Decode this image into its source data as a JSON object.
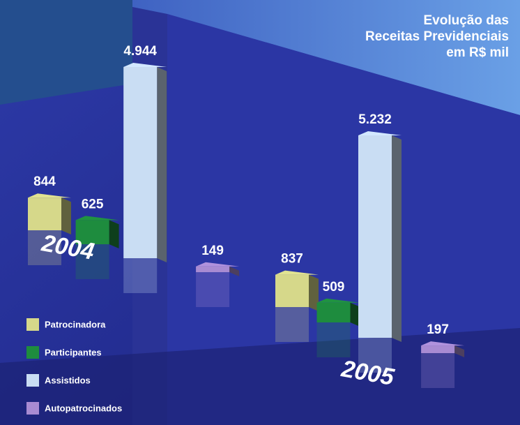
{
  "chart_data": {
    "type": "bar3d",
    "title": "Evolução das\nReceitas Previdenciais\nem R$ mil",
    "categories": [
      "2004",
      "2005"
    ],
    "series": [
      {
        "name": "Patrocinadora",
        "color": "#d6d88a",
        "values": [
          844,
          837
        ],
        "value_labels": [
          "844",
          "837"
        ]
      },
      {
        "name": "Participantes",
        "color": "#1e8c3e",
        "values": [
          625,
          509
        ],
        "value_labels": [
          "625",
          "509"
        ]
      },
      {
        "name": "Assistidos",
        "color": "#c9ddf3",
        "values": [
          4944,
          5232
        ],
        "value_labels": [
          "4.944",
          "5.232"
        ]
      },
      {
        "name": "Autopatrocinados",
        "color": "#a88bd2",
        "values": [
          149,
          197
        ],
        "value_labels": [
          "149",
          "197"
        ]
      }
    ],
    "legend": "bottom-left"
  }
}
